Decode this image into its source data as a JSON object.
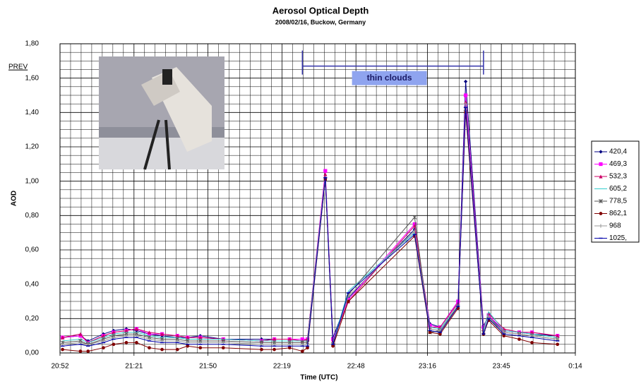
{
  "chart_data": {
    "type": "line",
    "title": "Aerosol Optical Depth",
    "subtitle": "2008/02/16, Buckow, Germany",
    "x_label": "Time (UTC)",
    "y_label": "AOD",
    "corner_label": "PREV",
    "x": [
      "20:53",
      "21:00",
      "21:03",
      "21:09",
      "21:13",
      "21:18",
      "21:22",
      "21:27",
      "21:32",
      "21:38",
      "21:42",
      "21:47",
      "21:56",
      "22:11",
      "22:16",
      "22:22",
      "22:27",
      "22:29",
      "22:36",
      "22:39",
      "22:45",
      "23:11",
      "23:17",
      "23:21",
      "23:28",
      "23:31",
      "23:38",
      "23:40",
      "23:46",
      "23:52",
      "23:57",
      "0:07"
    ],
    "xlim": [
      "20:52",
      "0:14"
    ],
    "xticks": [
      "20:52",
      "21:21",
      "21:50",
      "22:19",
      "22:48",
      "23:16",
      "23:45",
      "0:14"
    ],
    "ylim": [
      0,
      1.8
    ],
    "yticks": [
      {
        "value": 0,
        "label": "0,00"
      },
      {
        "value": 0.2,
        "label": "0,20"
      },
      {
        "value": 0.4,
        "label": "0,40"
      },
      {
        "value": 0.6,
        "label": "0,60"
      },
      {
        "value": 0.8,
        "label": "0,80"
      },
      {
        "value": 1.0,
        "label": "1,00"
      },
      {
        "value": 1.2,
        "label": "1,20"
      },
      {
        "value": 1.4,
        "label": "1,40"
      },
      {
        "value": 1.6,
        "label": "1,60"
      },
      {
        "value": 1.8,
        "label": "1,80"
      }
    ],
    "grid": true,
    "legend": "right",
    "annotations": [
      {
        "text": "thin clouds",
        "x": [
          "22:27",
          "23:38"
        ],
        "y": 1.67
      }
    ],
    "series": [
      {
        "name": "420,4",
        "color": "#000080",
        "marker": "diamond",
        "values": [
          0.09,
          0.1,
          0.07,
          0.11,
          0.13,
          0.14,
          0.13,
          0.11,
          0.1,
          0.09,
          0.09,
          0.1,
          0.08,
          0.08,
          0.08,
          0.08,
          0.08,
          0.08,
          1.02,
          0.09,
          0.32,
          0.72,
          0.17,
          0.15,
          0.3,
          1.58,
          0.16,
          0.21,
          0.13,
          0.12,
          0.11,
          0.1
        ]
      },
      {
        "name": "469,3",
        "color": "#ff00ff",
        "marker": "square",
        "values": [
          0.09,
          0.1,
          0.06,
          0.1,
          0.12,
          0.13,
          0.14,
          0.11,
          0.11,
          0.1,
          0.09,
          0.09,
          0.08,
          0.07,
          0.08,
          0.08,
          0.08,
          0.08,
          1.06,
          0.08,
          0.31,
          0.75,
          0.16,
          0.15,
          0.3,
          1.5,
          0.15,
          0.22,
          0.13,
          0.12,
          0.12,
          0.1
        ]
      },
      {
        "name": "532,3",
        "color": "#cc0066",
        "marker": "triangle",
        "values": [
          0.09,
          0.11,
          0.06,
          0.1,
          0.12,
          0.13,
          0.14,
          0.12,
          0.11,
          0.1,
          0.09,
          0.09,
          0.08,
          0.07,
          0.08,
          0.08,
          0.07,
          0.08,
          1.04,
          0.07,
          0.3,
          0.74,
          0.15,
          0.15,
          0.29,
          1.46,
          0.14,
          0.23,
          0.14,
          0.12,
          0.12,
          0.1
        ]
      },
      {
        "name": "605,2",
        "color": "#33cccc",
        "marker": "none",
        "values": [
          0.07,
          0.08,
          0.06,
          0.09,
          0.11,
          0.12,
          0.12,
          0.1,
          0.09,
          0.09,
          0.08,
          0.08,
          0.08,
          0.07,
          0.07,
          0.07,
          0.07,
          0.07,
          1.03,
          0.06,
          0.36,
          0.7,
          0.15,
          0.14,
          0.28,
          1.44,
          0.13,
          0.24,
          0.13,
          0.12,
          0.11,
          0.09
        ]
      },
      {
        "name": "778,5",
        "color": "#555555",
        "marker": "star",
        "values": [
          0.06,
          0.07,
          0.05,
          0.08,
          0.1,
          0.11,
          0.11,
          0.09,
          0.08,
          0.08,
          0.07,
          0.07,
          0.07,
          0.06,
          0.06,
          0.06,
          0.06,
          0.06,
          1.01,
          0.05,
          0.34,
          0.79,
          0.12,
          0.13,
          0.27,
          1.42,
          0.12,
          0.2,
          0.12,
          0.11,
          0.1,
          0.08
        ]
      },
      {
        "name": "862,1",
        "color": "#800000",
        "marker": "circle",
        "values": [
          0.02,
          0.01,
          0.01,
          0.03,
          0.05,
          0.06,
          0.06,
          0.03,
          0.02,
          0.02,
          0.04,
          0.03,
          0.03,
          0.02,
          0.02,
          0.03,
          0.01,
          0.03,
          1.01,
          0.04,
          0.3,
          0.68,
          0.12,
          0.11,
          0.26,
          1.4,
          0.11,
          0.19,
          0.1,
          0.08,
          0.06,
          0.05
        ]
      },
      {
        "name": "968",
        "color": "#999999",
        "marker": "plus",
        "values": [
          0.05,
          0.06,
          0.05,
          0.07,
          0.09,
          0.1,
          0.1,
          0.08,
          0.07,
          0.07,
          0.06,
          0.06,
          0.06,
          0.05,
          0.05,
          0.05,
          0.05,
          0.05,
          1.02,
          0.06,
          0.33,
          0.71,
          0.14,
          0.13,
          0.28,
          1.45,
          0.12,
          0.21,
          0.12,
          0.11,
          0.1,
          0.08
        ]
      },
      {
        "name": "1025,",
        "color": "#0000aa",
        "marker": "dash",
        "values": [
          0.04,
          0.05,
          0.04,
          0.06,
          0.08,
          0.09,
          0.09,
          0.07,
          0.06,
          0.06,
          0.05,
          0.05,
          0.05,
          0.04,
          0.04,
          0.04,
          0.04,
          0.04,
          1.02,
          0.05,
          0.35,
          0.69,
          0.13,
          0.12,
          0.27,
          1.43,
          0.11,
          0.2,
          0.11,
          0.1,
          0.09,
          0.07
        ]
      }
    ]
  }
}
